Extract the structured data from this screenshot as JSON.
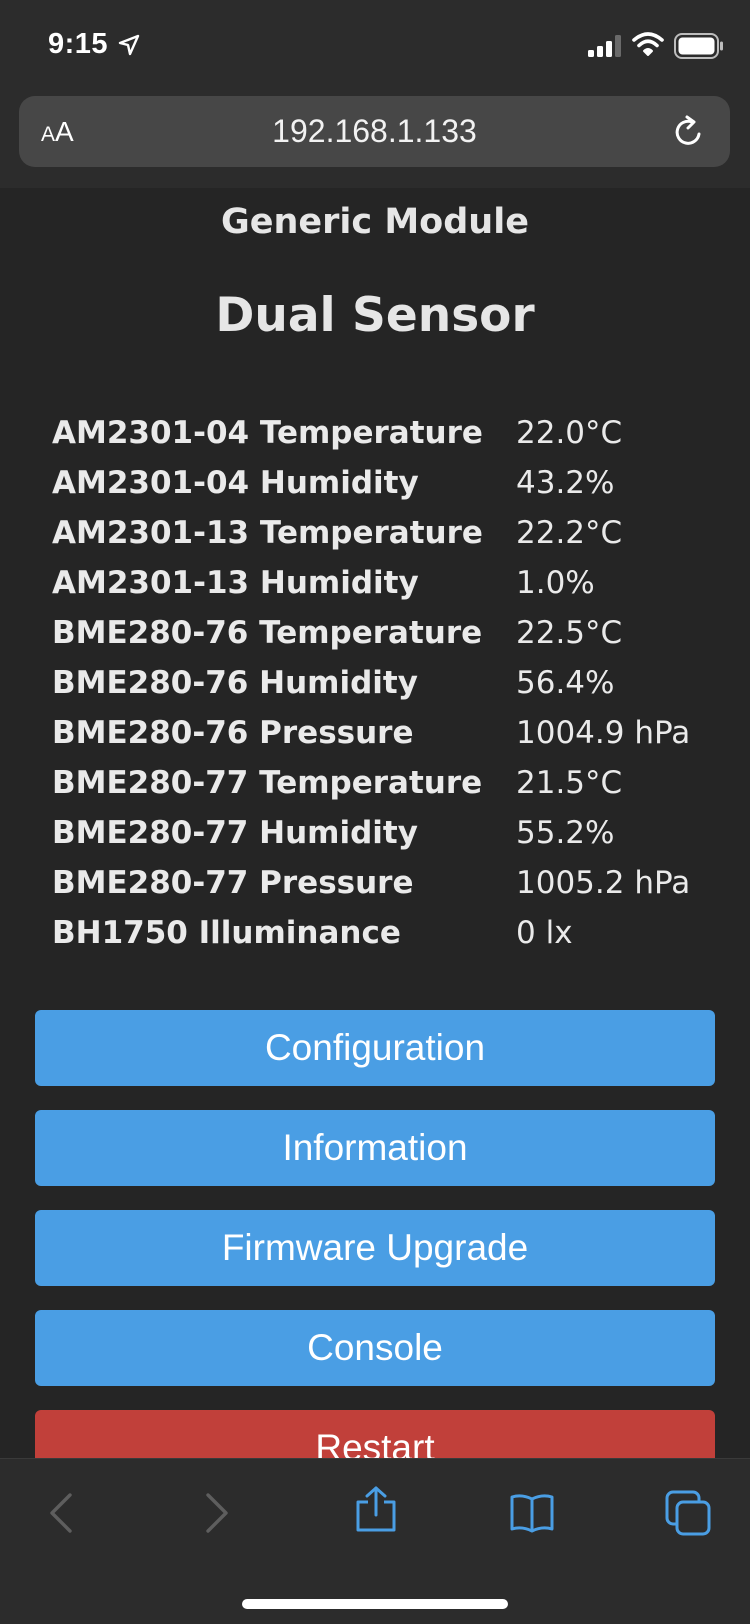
{
  "status_bar": {
    "time": "9:15",
    "icons": [
      "location-arrow-icon",
      "signal-icon",
      "wifi-icon",
      "battery-icon"
    ]
  },
  "browser": {
    "text_size_label_small": "A",
    "text_size_label_large": "A",
    "url": "192.168.1.133",
    "reload_icon": "reload-icon"
  },
  "page": {
    "module_name": "Generic Module",
    "device_name": "Dual Sensor",
    "sensors": [
      {
        "label": "AM2301-04 Temperature",
        "value": "22.0°C"
      },
      {
        "label": "AM2301-04 Humidity",
        "value": "43.2%"
      },
      {
        "label": "AM2301-13 Temperature",
        "value": "22.2°C"
      },
      {
        "label": "AM2301-13 Humidity",
        "value": "1.0%"
      },
      {
        "label": "BME280-76 Temperature",
        "value": "22.5°C"
      },
      {
        "label": "BME280-76 Humidity",
        "value": "56.4%"
      },
      {
        "label": "BME280-76 Pressure",
        "value": "1004.9 hPa"
      },
      {
        "label": "BME280-77 Temperature",
        "value": "21.5°C"
      },
      {
        "label": "BME280-77 Humidity",
        "value": "55.2%"
      },
      {
        "label": "BME280-77 Pressure",
        "value": "1005.2 hPa"
      },
      {
        "label": "BH1750 Illuminance",
        "value": "0 lx"
      }
    ],
    "buttons": {
      "configuration": "Configuration",
      "information": "Information",
      "firmware_upgrade": "Firmware Upgrade",
      "console": "Console",
      "restart": "Restart"
    }
  },
  "toolbar": {
    "icons": [
      "back-icon",
      "forward-icon",
      "share-icon",
      "bookmarks-icon",
      "tabs-icon"
    ]
  },
  "colors": {
    "button_blue": "#4a9ee4",
    "button_red": "#c1403a",
    "background": "#252525",
    "chrome": "#2c2c2c",
    "toolbar_accent": "#4a9ee4"
  }
}
